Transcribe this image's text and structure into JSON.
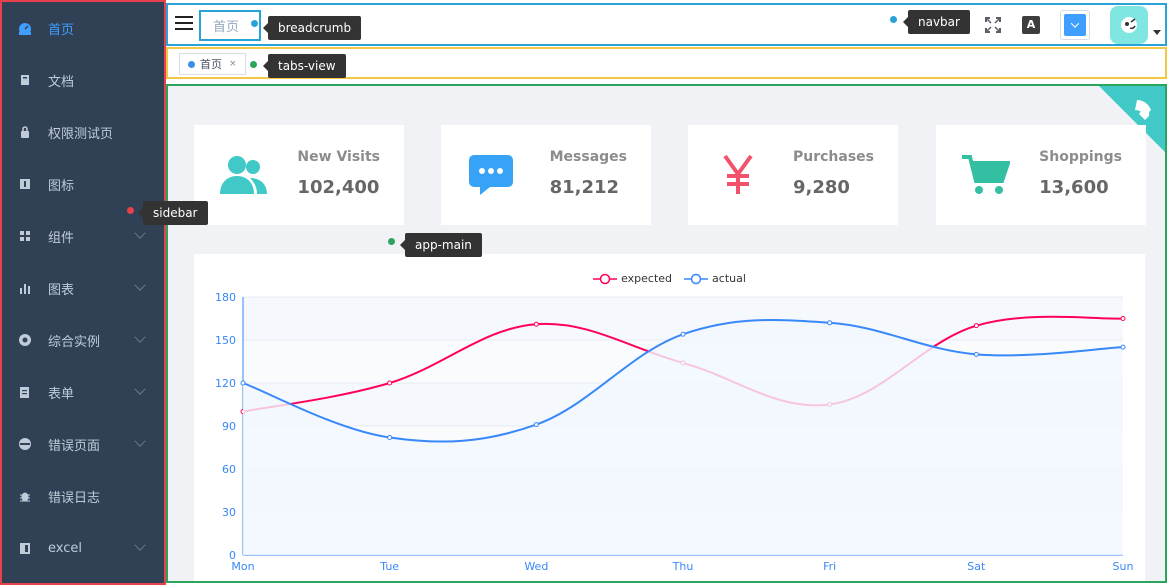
{
  "sidebar": {
    "items": [
      {
        "label": "首页",
        "icon": "dashboard-icon",
        "active": true,
        "arrow": false
      },
      {
        "label": "文档",
        "icon": "document-icon",
        "active": false,
        "arrow": false
      },
      {
        "label": "权限测试页",
        "icon": "lock-icon",
        "active": false,
        "arrow": false
      },
      {
        "label": "图标",
        "icon": "icon-icon",
        "active": false,
        "arrow": false
      },
      {
        "label": "组件",
        "icon": "component-icon",
        "active": false,
        "arrow": true
      },
      {
        "label": "图表",
        "icon": "chart-icon",
        "active": false,
        "arrow": true
      },
      {
        "label": "综合实例",
        "icon": "example-icon",
        "active": false,
        "arrow": true
      },
      {
        "label": "表单",
        "icon": "form-icon",
        "active": false,
        "arrow": true
      },
      {
        "label": "错误页面",
        "icon": "error-page-icon",
        "active": false,
        "arrow": true
      },
      {
        "label": "错误日志",
        "icon": "bug-icon",
        "active": false,
        "arrow": false
      },
      {
        "label": "excel",
        "icon": "excel-icon",
        "active": false,
        "arrow": true
      }
    ]
  },
  "navbar": {
    "breadcrumb": "首页",
    "lang_label": "A"
  },
  "tabs": [
    {
      "label": "首页",
      "close": "×"
    }
  ],
  "labels": {
    "breadcrumb": "breadcrumb",
    "navbar": "navbar",
    "tabs_view": "tabs-view",
    "sidebar": "sidebar",
    "app_main": "app-main"
  },
  "cards": [
    {
      "title": "New Visits",
      "value": "102,400",
      "icon": "peoples-icon",
      "color": "#40c9c6"
    },
    {
      "title": "Messages",
      "value": "81,212",
      "icon": "message-icon",
      "color": "#36a3f7"
    },
    {
      "title": "Purchases",
      "value": "9,280",
      "icon": "money-icon",
      "color": "#f4516c"
    },
    {
      "title": "Shoppings",
      "value": "13,600",
      "icon": "shopping-icon",
      "color": "#34bfa3"
    }
  ],
  "colors": {
    "sidebar_bg": "#304156",
    "accent": "#409eff",
    "expected": "#ff005a",
    "actual": "#3888fa"
  },
  "chart_data": {
    "type": "line",
    "categories": [
      "Mon",
      "Tue",
      "Wed",
      "Thu",
      "Fri",
      "Sat",
      "Sun"
    ],
    "series": [
      {
        "name": "expected",
        "values": [
          100,
          120,
          161,
          134,
          105,
          160,
          165
        ]
      },
      {
        "name": "actual",
        "values": [
          120,
          82,
          91,
          154,
          162,
          140,
          145
        ]
      }
    ],
    "yticks": [
      0,
      30,
      60,
      90,
      120,
      150,
      180
    ],
    "ylim": [
      0,
      180
    ],
    "smooth": true,
    "legend": "top-center",
    "grid": true
  }
}
